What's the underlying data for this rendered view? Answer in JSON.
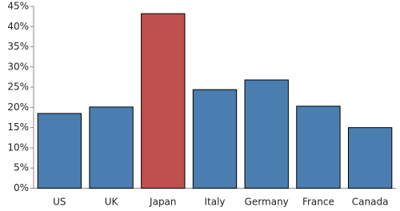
{
  "chart_data": {
    "type": "bar",
    "categories": [
      "US",
      "UK",
      "Japan",
      "Italy",
      "Germany",
      "France",
      "Canada"
    ],
    "values": [
      18.5,
      20.1,
      43.2,
      24.4,
      26.8,
      20.3,
      15.0
    ],
    "colors": [
      "#4a7eb0",
      "#4a7eb0",
      "#c0504d",
      "#4a7eb0",
      "#4a7eb0",
      "#4a7eb0",
      "#4a7eb0"
    ],
    "ylim": [
      0,
      45
    ],
    "yticks": [
      {
        "value": 0,
        "label": "0%"
      },
      {
        "value": 5,
        "label": "5%"
      },
      {
        "value": 10,
        "label": "10%"
      },
      {
        "value": 15,
        "label": "15%"
      },
      {
        "value": 20,
        "label": "20%"
      },
      {
        "value": 25,
        "label": "25%"
      },
      {
        "value": 30,
        "label": "30%"
      },
      {
        "value": 35,
        "label": "35%"
      },
      {
        "value": 40,
        "label": "40%"
      },
      {
        "value": 45,
        "label": "45%"
      }
    ],
    "grid": false
  }
}
